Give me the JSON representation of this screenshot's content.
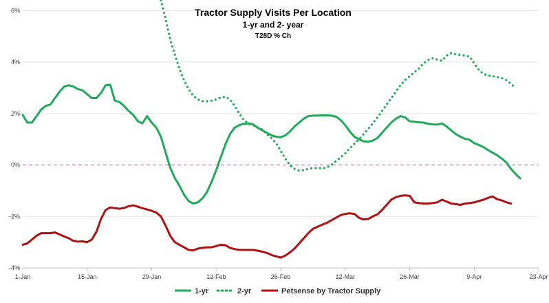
{
  "chart_data": {
    "type": "line",
    "title": "Tractor Supply Visits Per Location",
    "subtitle": "1-yr and 2- year",
    "subtitle2": "T28D % Ch",
    "xlabel": "",
    "ylabel": "",
    "y_unit": "%",
    "ylim": [
      -4,
      6.2
    ],
    "y_ticks": [
      -4,
      -2,
      0,
      2,
      4,
      6
    ],
    "y_tick_labels": [
      "-4%",
      "-2%",
      "0%",
      "2%",
      "4%",
      "6%"
    ],
    "x_range": [
      0,
      112
    ],
    "x_tick_positions": [
      0,
      14,
      28,
      42,
      56,
      70,
      84,
      98,
      112
    ],
    "x_tick_labels": [
      "1-Jan",
      "15-Jan",
      "29-Jan",
      "12-Feb",
      "26-Feb",
      "12-Mar",
      "26-Mar",
      "9-Apr",
      "23-Apr"
    ],
    "grid": "horizontal",
    "reference_line": {
      "y": 0,
      "color": "#e066e0",
      "style": "dashed"
    },
    "legend": {
      "placement": "bottom"
    },
    "series": [
      {
        "name": "1-yr",
        "color": "#1faa59",
        "style": "solid",
        "points": [
          [
            0,
            1.95
          ],
          [
            1,
            1.65
          ],
          [
            2,
            1.65
          ],
          [
            3,
            1.9
          ],
          [
            4,
            2.15
          ],
          [
            5,
            2.3
          ],
          [
            6,
            2.35
          ],
          [
            7,
            2.6
          ],
          [
            8,
            2.85
          ],
          [
            9,
            3.05
          ],
          [
            10,
            3.1
          ],
          [
            11,
            3.05
          ],
          [
            12,
            2.95
          ],
          [
            13,
            2.9
          ],
          [
            14,
            2.75
          ],
          [
            15,
            2.6
          ],
          [
            16,
            2.6
          ],
          [
            17,
            2.8
          ],
          [
            18,
            3.1
          ],
          [
            19,
            3.12
          ],
          [
            20,
            2.5
          ],
          [
            21,
            2.45
          ],
          [
            22,
            2.3
          ],
          [
            23,
            2.1
          ],
          [
            24,
            1.95
          ],
          [
            25,
            1.7
          ],
          [
            26,
            1.62
          ],
          [
            27,
            1.9
          ],
          [
            28,
            1.65
          ],
          [
            29,
            1.45
          ],
          [
            30,
            1.1
          ],
          [
            31,
            0.5
          ],
          [
            32,
            -0.1
          ],
          [
            33,
            -0.5
          ],
          [
            34,
            -0.8
          ],
          [
            35,
            -1.15
          ],
          [
            36,
            -1.4
          ],
          [
            37,
            -1.5
          ],
          [
            38,
            -1.45
          ],
          [
            39,
            -1.3
          ],
          [
            40,
            -1.05
          ],
          [
            41,
            -0.65
          ],
          [
            42,
            -0.2
          ],
          [
            43,
            0.3
          ],
          [
            44,
            0.8
          ],
          [
            45,
            1.2
          ],
          [
            46,
            1.45
          ],
          [
            47,
            1.55
          ],
          [
            48,
            1.6
          ],
          [
            49,
            1.62
          ],
          [
            50,
            1.58
          ],
          [
            51,
            1.45
          ],
          [
            52,
            1.35
          ],
          [
            53,
            1.25
          ],
          [
            54,
            1.15
          ],
          [
            55,
            1.1
          ],
          [
            56,
            1.08
          ],
          [
            57,
            1.15
          ],
          [
            58,
            1.3
          ],
          [
            59,
            1.5
          ],
          [
            60,
            1.65
          ],
          [
            61,
            1.8
          ],
          [
            62,
            1.9
          ],
          [
            63,
            1.92
          ],
          [
            64,
            1.92
          ],
          [
            65,
            1.93
          ],
          [
            66,
            1.93
          ],
          [
            67,
            1.92
          ],
          [
            68,
            1.88
          ],
          [
            69,
            1.75
          ],
          [
            70,
            1.55
          ],
          [
            71,
            1.3
          ],
          [
            72,
            1.1
          ],
          [
            73,
            1.0
          ],
          [
            74,
            0.92
          ],
          [
            75,
            0.9
          ],
          [
            76,
            0.95
          ],
          [
            77,
            1.05
          ],
          [
            78,
            1.25
          ],
          [
            79,
            1.45
          ],
          [
            80,
            1.65
          ],
          [
            81,
            1.8
          ],
          [
            82,
            1.9
          ],
          [
            83,
            1.85
          ],
          [
            84,
            1.7
          ],
          [
            85,
            1.68
          ],
          [
            86,
            1.66
          ],
          [
            87,
            1.65
          ],
          [
            88,
            1.6
          ],
          [
            89,
            1.58
          ],
          [
            90,
            1.57
          ],
          [
            91,
            1.62
          ],
          [
            92,
            1.5
          ],
          [
            93,
            1.35
          ],
          [
            94,
            1.2
          ],
          [
            95,
            1.1
          ],
          [
            96,
            1.02
          ],
          [
            97,
            0.98
          ],
          [
            98,
            0.85
          ],
          [
            99,
            0.78
          ],
          [
            100,
            0.7
          ],
          [
            101,
            0.58
          ],
          [
            102,
            0.48
          ],
          [
            103,
            0.38
          ],
          [
            104,
            0.25
          ],
          [
            105,
            0.1
          ],
          [
            106,
            -0.15
          ],
          [
            107,
            -0.35
          ],
          [
            108,
            -0.52
          ]
        ]
      },
      {
        "name": "2-yr",
        "color": "#1faa59",
        "style": "dotted",
        "points": [
          [
            29,
            6.7
          ],
          [
            30,
            6.4
          ],
          [
            31,
            5.7
          ],
          [
            32,
            4.9
          ],
          [
            33,
            4.3
          ],
          [
            34,
            3.75
          ],
          [
            35,
            3.3
          ],
          [
            36,
            2.95
          ],
          [
            37,
            2.7
          ],
          [
            38,
            2.55
          ],
          [
            39,
            2.48
          ],
          [
            40,
            2.48
          ],
          [
            41,
            2.5
          ],
          [
            42,
            2.55
          ],
          [
            43,
            2.62
          ],
          [
            44,
            2.65
          ],
          [
            45,
            2.55
          ],
          [
            46,
            2.3
          ],
          [
            47,
            2.0
          ],
          [
            48,
            1.75
          ],
          [
            49,
            1.6
          ],
          [
            50,
            1.55
          ],
          [
            51,
            1.45
          ],
          [
            52,
            1.38
          ],
          [
            53,
            1.2
          ],
          [
            54,
            1.05
          ],
          [
            55,
            0.85
          ],
          [
            56,
            0.55
          ],
          [
            57,
            0.25
          ],
          [
            58,
            0.0
          ],
          [
            59,
            -0.15
          ],
          [
            60,
            -0.22
          ],
          [
            61,
            -0.2
          ],
          [
            62,
            -0.15
          ],
          [
            63,
            -0.12
          ],
          [
            64,
            -0.12
          ],
          [
            65,
            -0.13
          ],
          [
            66,
            -0.1
          ],
          [
            67,
            0.0
          ],
          [
            68,
            0.15
          ],
          [
            69,
            0.3
          ],
          [
            70,
            0.45
          ],
          [
            71,
            0.65
          ],
          [
            72,
            0.82
          ],
          [
            73,
            1.0
          ],
          [
            74,
            1.2
          ],
          [
            75,
            1.4
          ],
          [
            76,
            1.62
          ],
          [
            77,
            1.85
          ],
          [
            78,
            2.1
          ],
          [
            79,
            2.35
          ],
          [
            80,
            2.6
          ],
          [
            81,
            2.85
          ],
          [
            82,
            3.1
          ],
          [
            83,
            3.3
          ],
          [
            84,
            3.45
          ],
          [
            85,
            3.6
          ],
          [
            86,
            3.75
          ],
          [
            87,
            3.95
          ],
          [
            88,
            4.08
          ],
          [
            89,
            4.15
          ],
          [
            90,
            4.1
          ],
          [
            91,
            4.05
          ],
          [
            92,
            4.25
          ],
          [
            93,
            4.35
          ],
          [
            94,
            4.3
          ],
          [
            95,
            4.28
          ],
          [
            96,
            4.25
          ],
          [
            97,
            4.22
          ],
          [
            98,
            3.95
          ],
          [
            99,
            3.7
          ],
          [
            100,
            3.55
          ],
          [
            101,
            3.48
          ],
          [
            102,
            3.45
          ],
          [
            103,
            3.42
          ],
          [
            104,
            3.38
          ],
          [
            105,
            3.3
          ],
          [
            106,
            3.15
          ],
          [
            107,
            3.0
          ]
        ]
      },
      {
        "name": "Petsense by Tractor Supply",
        "color": "#b01010",
        "style": "solid",
        "points": [
          [
            0,
            -3.1
          ],
          [
            1,
            -3.05
          ],
          [
            2,
            -2.9
          ],
          [
            3,
            -2.75
          ],
          [
            4,
            -2.65
          ],
          [
            5,
            -2.65
          ],
          [
            6,
            -2.65
          ],
          [
            7,
            -2.62
          ],
          [
            8,
            -2.7
          ],
          [
            9,
            -2.78
          ],
          [
            10,
            -2.85
          ],
          [
            11,
            -2.95
          ],
          [
            12,
            -2.98
          ],
          [
            13,
            -2.97
          ],
          [
            14,
            -3.0
          ],
          [
            15,
            -2.9
          ],
          [
            16,
            -2.6
          ],
          [
            17,
            -2.1
          ],
          [
            18,
            -1.75
          ],
          [
            19,
            -1.65
          ],
          [
            20,
            -1.68
          ],
          [
            21,
            -1.7
          ],
          [
            22,
            -1.67
          ],
          [
            23,
            -1.6
          ],
          [
            24,
            -1.57
          ],
          [
            25,
            -1.62
          ],
          [
            26,
            -1.68
          ],
          [
            27,
            -1.73
          ],
          [
            28,
            -1.78
          ],
          [
            29,
            -1.85
          ],
          [
            30,
            -2.0
          ],
          [
            31,
            -2.35
          ],
          [
            32,
            -2.75
          ],
          [
            33,
            -3.0
          ],
          [
            34,
            -3.1
          ],
          [
            35,
            -3.2
          ],
          [
            36,
            -3.3
          ],
          [
            37,
            -3.32
          ],
          [
            38,
            -3.25
          ],
          [
            39,
            -3.22
          ],
          [
            40,
            -3.2
          ],
          [
            41,
            -3.2
          ],
          [
            42,
            -3.15
          ],
          [
            43,
            -3.1
          ],
          [
            44,
            -3.12
          ],
          [
            45,
            -3.22
          ],
          [
            46,
            -3.27
          ],
          [
            47,
            -3.3
          ],
          [
            48,
            -3.3
          ],
          [
            49,
            -3.3
          ],
          [
            50,
            -3.3
          ],
          [
            51,
            -3.33
          ],
          [
            52,
            -3.37
          ],
          [
            53,
            -3.42
          ],
          [
            54,
            -3.5
          ],
          [
            55,
            -3.55
          ],
          [
            56,
            -3.6
          ],
          [
            57,
            -3.52
          ],
          [
            58,
            -3.4
          ],
          [
            59,
            -3.25
          ],
          [
            60,
            -3.05
          ],
          [
            61,
            -2.85
          ],
          [
            62,
            -2.65
          ],
          [
            63,
            -2.48
          ],
          [
            64,
            -2.4
          ],
          [
            65,
            -2.32
          ],
          [
            66,
            -2.25
          ],
          [
            67,
            -2.15
          ],
          [
            68,
            -2.05
          ],
          [
            69,
            -1.95
          ],
          [
            70,
            -1.9
          ],
          [
            71,
            -1.88
          ],
          [
            72,
            -1.9
          ],
          [
            73,
            -2.05
          ],
          [
            74,
            -2.12
          ],
          [
            75,
            -2.1
          ],
          [
            76,
            -2.0
          ],
          [
            77,
            -1.92
          ],
          [
            78,
            -1.75
          ],
          [
            79,
            -1.55
          ],
          [
            80,
            -1.35
          ],
          [
            81,
            -1.25
          ],
          [
            82,
            -1.2
          ],
          [
            83,
            -1.18
          ],
          [
            84,
            -1.2
          ],
          [
            85,
            -1.45
          ],
          [
            86,
            -1.48
          ],
          [
            87,
            -1.5
          ],
          [
            88,
            -1.5
          ],
          [
            89,
            -1.48
          ],
          [
            90,
            -1.45
          ],
          [
            91,
            -1.35
          ],
          [
            92,
            -1.42
          ],
          [
            93,
            -1.5
          ],
          [
            94,
            -1.52
          ],
          [
            95,
            -1.55
          ],
          [
            96,
            -1.5
          ],
          [
            97,
            -1.48
          ],
          [
            98,
            -1.45
          ],
          [
            99,
            -1.4
          ],
          [
            100,
            -1.35
          ],
          [
            101,
            -1.28
          ],
          [
            102,
            -1.22
          ],
          [
            103,
            -1.33
          ],
          [
            104,
            -1.38
          ],
          [
            105,
            -1.45
          ],
          [
            106,
            -1.5
          ]
        ]
      }
    ]
  }
}
